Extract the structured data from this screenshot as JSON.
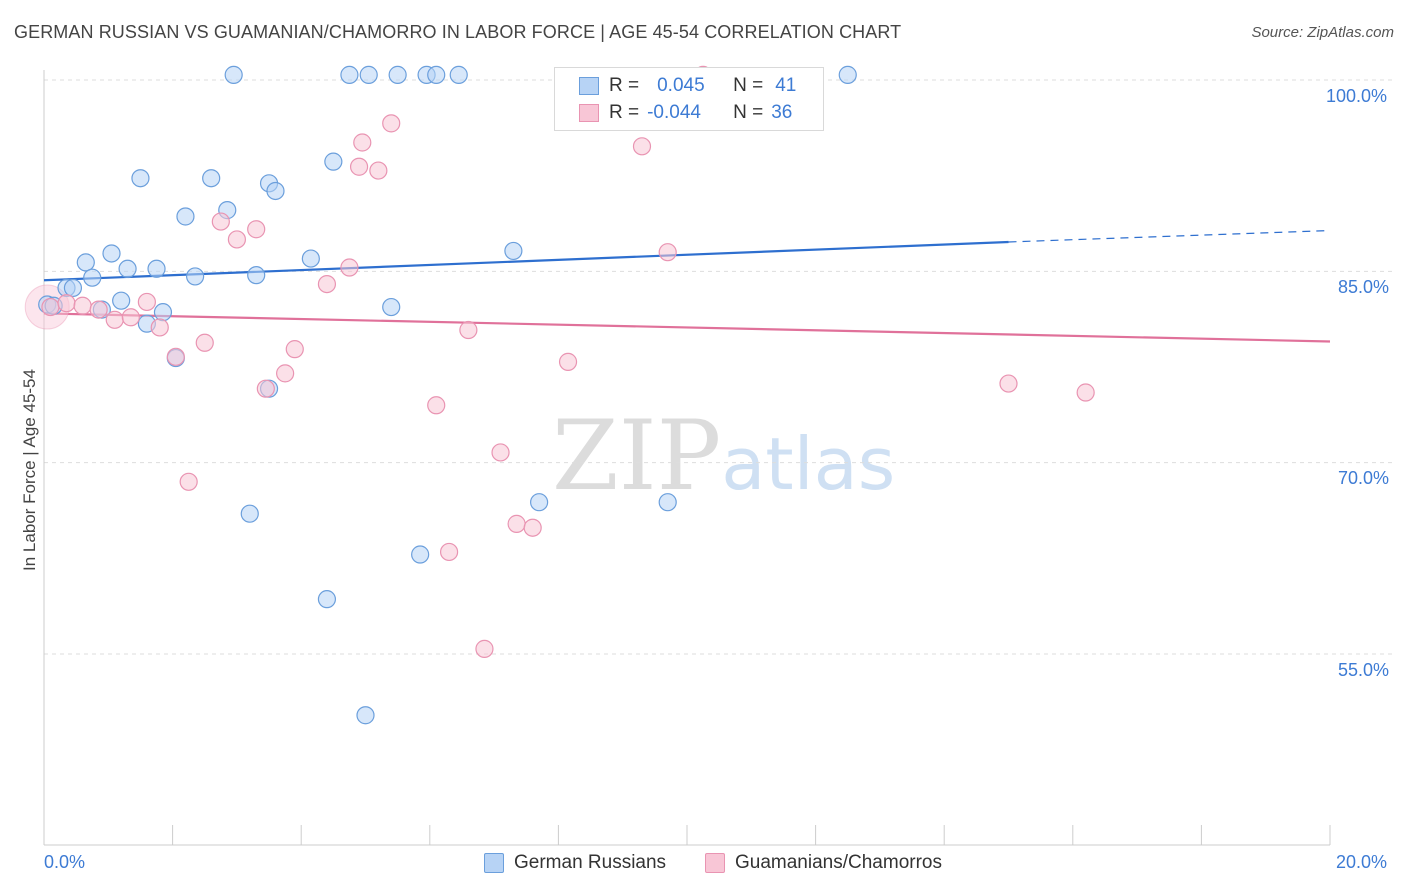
{
  "header": {
    "title": "GERMAN RUSSIAN VS GUAMANIAN/CHAMORRO IN LABOR FORCE | AGE 45-54 CORRELATION CHART",
    "source": "Source: ZipAtlas.com"
  },
  "watermark": {
    "zip": "ZIP",
    "atlas": "atlas"
  },
  "legend_top": {
    "rows": [
      {
        "r_label": "R =",
        "r_value": "0.045",
        "n_label": "N =",
        "n_value": "41"
      },
      {
        "r_label": "R =",
        "r_value": "-0.044",
        "n_label": "N =",
        "n_value": "36"
      }
    ]
  },
  "legend_bottom": {
    "items": [
      {
        "label": "German Russians"
      },
      {
        "label": "Guamanians/Chamorros"
      }
    ]
  },
  "colors": {
    "blue_fill": "#b7d3f5",
    "blue_stroke": "#6b9fdc",
    "blue_line": "#2e6fcf",
    "pink_fill": "#f8c6d6",
    "pink_stroke": "#e994b2",
    "pink_line": "#e0719a",
    "tick_text": "#3d7bd4",
    "grid": "#dddddd"
  },
  "chart_data": {
    "type": "scatter",
    "title": "GERMAN RUSSIAN VS GUAMANIAN/CHAMORRO IN LABOR FORCE | AGE 45-54 CORRELATION CHART",
    "xlabel": "",
    "ylabel": "In Labor Force | Age 45-54",
    "xlim": [
      0,
      20
    ],
    "ylim": [
      41,
      102
    ],
    "x_tick_labels": [
      "0.0%",
      "20.0%"
    ],
    "y_ticks": [
      100,
      85,
      70,
      55
    ],
    "y_tick_labels": [
      "100.0%",
      "85.0%",
      "70.0%",
      "55.0%"
    ],
    "grid": true,
    "series": [
      {
        "name": "German Russians",
        "color": "#6b9fdc",
        "points": [
          [
            0.05,
            82.4
          ],
          [
            0.35,
            83.7
          ],
          [
            0.65,
            85.7
          ],
          [
            0.45,
            83.7
          ],
          [
            0.75,
            84.5
          ],
          [
            1.05,
            86.4
          ],
          [
            1.3,
            85.2
          ],
          [
            0.9,
            82.0
          ],
          [
            1.2,
            82.7
          ],
          [
            1.6,
            80.9
          ],
          [
            1.75,
            85.2
          ],
          [
            1.5,
            92.3
          ],
          [
            2.2,
            89.3
          ],
          [
            2.35,
            84.6
          ],
          [
            2.6,
            92.3
          ],
          [
            2.85,
            89.8
          ],
          [
            2.95,
            100.4
          ],
          [
            3.3,
            84.7
          ],
          [
            3.5,
            91.9
          ],
          [
            3.6,
            91.3
          ],
          [
            1.85,
            81.8
          ],
          [
            2.05,
            78.2
          ],
          [
            4.15,
            86.0
          ],
          [
            4.5,
            93.6
          ],
          [
            4.75,
            100.4
          ],
          [
            5.05,
            100.4
          ],
          [
            5.5,
            100.4
          ],
          [
            5.95,
            100.4
          ],
          [
            6.1,
            100.4
          ],
          [
            6.45,
            100.4
          ],
          [
            12.5,
            100.4
          ],
          [
            5.4,
            82.2
          ],
          [
            7.3,
            86.6
          ],
          [
            3.5,
            75.8
          ],
          [
            3.2,
            66.0
          ],
          [
            7.7,
            66.9
          ],
          [
            9.7,
            66.9
          ],
          [
            5.85,
            62.8
          ],
          [
            4.4,
            59.3
          ],
          [
            5.0,
            50.2
          ],
          [
            0.15,
            82.3
          ]
        ],
        "trend": {
          "x": [
            0,
            15
          ],
          "y": [
            84.3,
            87.3
          ],
          "dashed_to": [
            20,
            88.2
          ]
        }
      },
      {
        "name": "Guamanians/Chamorros",
        "color": "#e994b2",
        "points": [
          [
            0.1,
            82.2
          ],
          [
            0.35,
            82.5
          ],
          [
            0.6,
            82.3
          ],
          [
            0.85,
            82.0
          ],
          [
            1.1,
            81.2
          ],
          [
            1.35,
            81.4
          ],
          [
            1.6,
            82.6
          ],
          [
            1.8,
            80.6
          ],
          [
            2.05,
            78.3
          ],
          [
            2.5,
            79.4
          ],
          [
            2.75,
            88.9
          ],
          [
            3.0,
            87.5
          ],
          [
            3.3,
            88.3
          ],
          [
            3.45,
            75.8
          ],
          [
            3.75,
            77.0
          ],
          [
            3.9,
            78.9
          ],
          [
            4.4,
            84.0
          ],
          [
            4.75,
            85.3
          ],
          [
            4.9,
            93.2
          ],
          [
            4.95,
            95.1
          ],
          [
            5.2,
            92.9
          ],
          [
            5.4,
            96.6
          ],
          [
            6.1,
            74.5
          ],
          [
            6.3,
            63.0
          ],
          [
            6.6,
            80.4
          ],
          [
            7.1,
            70.8
          ],
          [
            7.35,
            65.2
          ],
          [
            7.6,
            64.9
          ],
          [
            8.15,
            77.9
          ],
          [
            9.3,
            94.8
          ],
          [
            9.7,
            86.5
          ],
          [
            10.25,
            100.4
          ],
          [
            15.0,
            76.2
          ],
          [
            16.2,
            75.5
          ],
          [
            2.25,
            68.5
          ],
          [
            6.85,
            55.4
          ]
        ],
        "trend": {
          "x": [
            0,
            20
          ],
          "y": [
            81.7,
            79.5
          ]
        }
      }
    ]
  }
}
